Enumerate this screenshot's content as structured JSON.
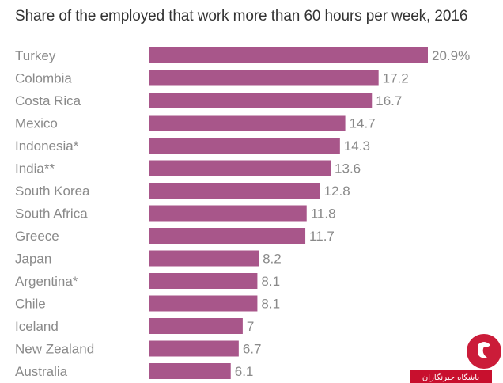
{
  "chart_data": {
    "type": "bar",
    "orientation": "horizontal",
    "title": "Share of the employed that work more than 60 hours per week, 2016",
    "categories": [
      "Turkey",
      "Colombia",
      "Costa Rica",
      "Mexico",
      "Indonesia*",
      "India**",
      "South Korea",
      "South Africa",
      "Greece",
      "Japan",
      "Argentina*",
      "Chile",
      "Iceland",
      "New Zealand",
      "Australia"
    ],
    "values": [
      20.9,
      17.2,
      16.7,
      14.7,
      14.3,
      13.6,
      12.8,
      11.8,
      11.7,
      8.2,
      8.1,
      8.1,
      7,
      6.7,
      6.1
    ],
    "value_labels": [
      "20.9%",
      "17.2",
      "16.7",
      "14.7",
      "14.3",
      "13.6",
      "12.8",
      "11.8",
      "11.7",
      "8.2",
      "8.1",
      "8.1",
      "7",
      "6.7",
      "6.1"
    ],
    "xlim": [
      0,
      20.9
    ],
    "bar_color": "#a8568a",
    "grid": false,
    "legend": "none"
  },
  "watermark": {
    "text": "باشگاه خبرنگاران",
    "color": "#c8102e"
  }
}
